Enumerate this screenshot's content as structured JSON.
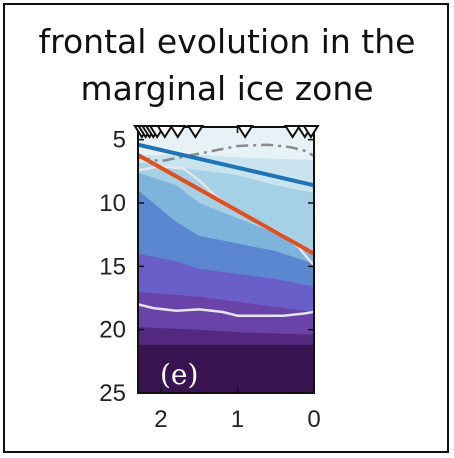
{
  "title": {
    "line1": "frontal evolution in the",
    "line2": "marginal ice zone"
  },
  "chart_data": {
    "type": "area",
    "panel_label": "(e)",
    "x_tick_labels": [
      "2",
      "1",
      "0"
    ],
    "y_tick_labels": [
      "5",
      "10",
      "15",
      "20",
      "25"
    ],
    "xlim": [
      2.3,
      0
    ],
    "ylim": [
      25,
      4
    ],
    "y_reversed": true,
    "grid": false,
    "colors": {
      "axis": "#111111",
      "background": "#e6f2f5",
      "blue_line": "#1f74b8",
      "orange_line": "#e0501e",
      "white_contour": "#e4e4ec",
      "dashdot_line": "#8a8a8a",
      "markers": "#111111"
    },
    "bands": [
      {
        "color": "#c9e4ef",
        "x": [
          2.3,
          1.5,
          1.0,
          0.5,
          0.0
        ],
        "lower": [
          6.2,
          6.2,
          6.4,
          6.5,
          6.6
        ]
      },
      {
        "color": "#a6d0e6",
        "x": [
          2.3,
          1.5,
          1.0,
          0.5,
          0.0
        ],
        "lower": [
          6.8,
          7.4,
          7.8,
          8.6,
          9.2
        ]
      },
      {
        "color": "#7db4db",
        "x": [
          2.3,
          1.8,
          1.5,
          1.0,
          0.5,
          0.0
        ],
        "lower": [
          7.6,
          8.6,
          10.0,
          11.2,
          12.4,
          14.2
        ]
      },
      {
        "color": "#5b86d0",
        "x": [
          2.3,
          1.8,
          1.5,
          1.0,
          0.5,
          0.0
        ],
        "lower": [
          9.0,
          11.5,
          12.6,
          13.2,
          13.8,
          14.8
        ]
      },
      {
        "color": "#6a5fc8",
        "x": [
          2.3,
          1.8,
          1.5,
          1.0,
          0.5,
          0.0
        ],
        "lower": [
          14.0,
          14.6,
          15.2,
          15.6,
          16.0,
          16.6
        ]
      },
      {
        "color": "#6a43a8",
        "x": [
          2.3,
          1.5,
          1.0,
          0.5,
          0.0
        ],
        "lower": [
          17.0,
          17.4,
          17.8,
          18.2,
          18.6
        ]
      },
      {
        "color": "#54287f",
        "x": [
          2.3,
          1.5,
          1.0,
          0.5,
          0.0
        ],
        "lower": [
          19.8,
          20.0,
          20.2,
          20.3,
          20.4
        ]
      },
      {
        "color": "#3a1450",
        "x": [
          2.3,
          1.5,
          1.0,
          0.5,
          0.0
        ],
        "lower": [
          21.2,
          21.2,
          21.2,
          21.2,
          21.2
        ]
      },
      {
        "color": "#2a0c34",
        "x": [
          2.3,
          0.0
        ],
        "lower": [
          25.0,
          25.0
        ]
      }
    ],
    "series": [
      {
        "style": "solid-blue",
        "x": [
          2.3,
          0.0
        ],
        "y": [
          5.4,
          8.6
        ]
      },
      {
        "style": "solid-orange",
        "x": [
          2.3,
          0.0
        ],
        "y": [
          6.2,
          14.0
        ]
      },
      {
        "style": "white-contour",
        "x": [
          2.3,
          2.0,
          1.7,
          1.5,
          1.3,
          1.0,
          0.7,
          0.4,
          0.2,
          0.05,
          0.0
        ],
        "y": [
          7.4,
          7.1,
          7.3,
          8.2,
          9.4,
          10.6,
          11.6,
          12.5,
          13.5,
          14.6,
          14.9
        ]
      },
      {
        "style": "white-contour",
        "x": [
          2.3,
          2.1,
          1.8,
          1.5,
          1.2,
          1.0,
          0.7,
          0.4,
          0.1,
          0.0
        ],
        "y": [
          18.0,
          18.3,
          18.5,
          18.4,
          18.6,
          18.9,
          18.9,
          18.9,
          18.7,
          18.6
        ]
      },
      {
        "style": "dash-dot",
        "x": [
          2.3,
          2.0,
          1.5,
          1.0,
          0.6,
          0.3,
          0.1,
          0.0
        ],
        "y": [
          6.4,
          6.7,
          6.1,
          5.5,
          5.4,
          5.6,
          5.9,
          6.3
        ]
      }
    ],
    "markers_x": [
      2.25,
      2.2,
      2.15,
      2.1,
      2.05,
      1.95,
      1.78,
      1.55,
      0.9,
      0.28,
      0.12,
      0.04
    ]
  }
}
